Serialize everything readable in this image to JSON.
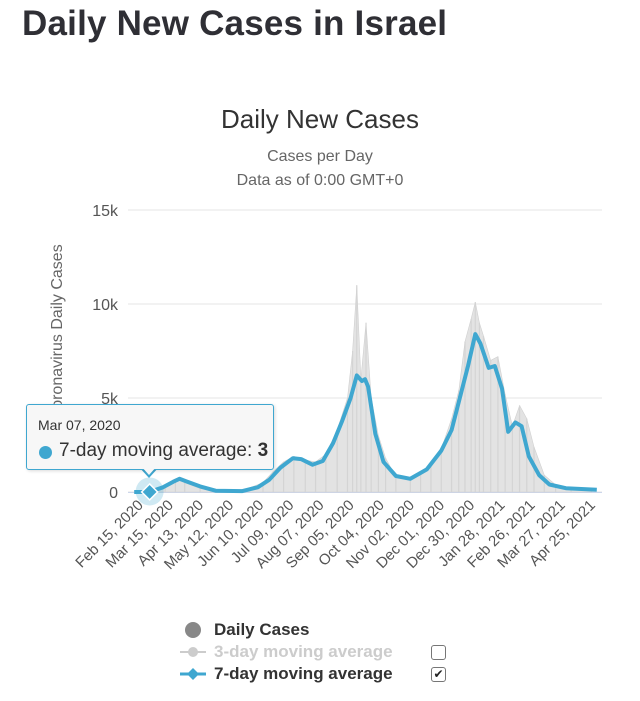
{
  "page": {
    "title": "Daily New Cases in Israel"
  },
  "chart_data": {
    "type": "line",
    "title": "Daily New Cases",
    "subtitle": "Cases per Day",
    "subtitle2": "Data as of 0:00 GMT+0",
    "ylabel": "Novel Coronavirus Daily Cases",
    "xlabel": "",
    "ylim": [
      0,
      15000
    ],
    "yticks": [
      {
        "value": 0,
        "label": "0"
      },
      {
        "value": 5000,
        "label": "5k"
      },
      {
        "value": 10000,
        "label": "10k"
      },
      {
        "value": 15000,
        "label": "15k"
      }
    ],
    "xlim": [
      "2020-02-15",
      "2021-05-20"
    ],
    "xticks": [
      "Feb 15, 2020",
      "Mar 15, 2020",
      "Apr 13, 2020",
      "May 12, 2020",
      "Jun 10, 2020",
      "Jul 09, 2020",
      "Aug 07, 2020",
      "Sep 05, 2020",
      "Oct 04, 2020",
      "Nov 02, 2020",
      "Dec 01, 2020",
      "Dec 30, 2020",
      "Jan 28, 2021",
      "Feb 26, 2021",
      "Mar 27, 2021",
      "Apr 25, 2021"
    ],
    "grid": true,
    "series": [
      {
        "name": "Daily Cases",
        "kind": "column",
        "color": "#dddddd",
        "points": [
          [
            "2020-02-21",
            0
          ],
          [
            "2020-03-10",
            50
          ],
          [
            "2020-03-22",
            400
          ],
          [
            "2020-04-01",
            700
          ],
          [
            "2020-04-10",
            500
          ],
          [
            "2020-04-25",
            180
          ],
          [
            "2020-05-10",
            30
          ],
          [
            "2020-05-25",
            30
          ],
          [
            "2020-06-10",
            180
          ],
          [
            "2020-06-25",
            500
          ],
          [
            "2020-07-05",
            1100
          ],
          [
            "2020-07-15",
            1600
          ],
          [
            "2020-07-25",
            1900
          ],
          [
            "2020-08-05",
            1700
          ],
          [
            "2020-08-15",
            1600
          ],
          [
            "2020-08-25",
            2000
          ],
          [
            "2020-09-05",
            3300
          ],
          [
            "2020-09-15",
            5000
          ],
          [
            "2020-09-20",
            7500
          ],
          [
            "2020-09-24",
            11000
          ],
          [
            "2020-09-28",
            6000
          ],
          [
            "2020-10-03",
            9000
          ],
          [
            "2020-10-08",
            5000
          ],
          [
            "2020-10-15",
            3000
          ],
          [
            "2020-10-22",
            1800
          ],
          [
            "2020-11-01",
            800
          ],
          [
            "2020-11-15",
            700
          ],
          [
            "2020-11-25",
            900
          ],
          [
            "2020-12-05",
            1500
          ],
          [
            "2020-12-15",
            2300
          ],
          [
            "2020-12-25",
            3900
          ],
          [
            "2021-01-01",
            5400
          ],
          [
            "2021-01-07",
            8000
          ],
          [
            "2021-01-13",
            9200
          ],
          [
            "2021-01-17",
            10100
          ],
          [
            "2021-01-21",
            9000
          ],
          [
            "2021-01-25",
            8300
          ],
          [
            "2021-02-01",
            7000
          ],
          [
            "2021-02-08",
            7200
          ],
          [
            "2021-02-15",
            5200
          ],
          [
            "2021-02-22",
            3500
          ],
          [
            "2021-03-01",
            4600
          ],
          [
            "2021-03-08",
            3900
          ],
          [
            "2021-03-15",
            2400
          ],
          [
            "2021-03-25",
            900
          ],
          [
            "2021-04-05",
            380
          ],
          [
            "2021-04-20",
            170
          ],
          [
            "2021-05-10",
            50
          ]
        ]
      },
      {
        "name": "3-day moving average",
        "kind": "line",
        "color": "#cccccc",
        "visible": false
      },
      {
        "name": "7-day moving average",
        "kind": "line",
        "color": "#3fa7d0",
        "points": [
          [
            "2020-02-21",
            0
          ],
          [
            "2020-03-07",
            3
          ],
          [
            "2020-03-20",
            250
          ],
          [
            "2020-03-30",
            550
          ],
          [
            "2020-04-05",
            700
          ],
          [
            "2020-04-12",
            560
          ],
          [
            "2020-04-25",
            300
          ],
          [
            "2020-05-10",
            70
          ],
          [
            "2020-06-05",
            50
          ],
          [
            "2020-06-20",
            250
          ],
          [
            "2020-07-01",
            650
          ],
          [
            "2020-07-12",
            1300
          ],
          [
            "2020-07-24",
            1800
          ],
          [
            "2020-08-01",
            1750
          ],
          [
            "2020-08-12",
            1450
          ],
          [
            "2020-08-22",
            1650
          ],
          [
            "2020-09-01",
            2600
          ],
          [
            "2020-09-10",
            3800
          ],
          [
            "2020-09-18",
            5000
          ],
          [
            "2020-09-24",
            6200
          ],
          [
            "2020-09-29",
            5900
          ],
          [
            "2020-10-02",
            6000
          ],
          [
            "2020-10-05",
            5600
          ],
          [
            "2020-10-12",
            3100
          ],
          [
            "2020-10-20",
            1600
          ],
          [
            "2020-11-01",
            850
          ],
          [
            "2020-11-15",
            700
          ],
          [
            "2020-12-01",
            1200
          ],
          [
            "2020-12-15",
            2200
          ],
          [
            "2020-12-25",
            3300
          ],
          [
            "2021-01-02",
            5000
          ],
          [
            "2021-01-10",
            6700
          ],
          [
            "2021-01-17",
            8400
          ],
          [
            "2021-01-22",
            7900
          ],
          [
            "2021-01-30",
            6600
          ],
          [
            "2021-02-05",
            6700
          ],
          [
            "2021-02-12",
            5500
          ],
          [
            "2021-02-18",
            3200
          ],
          [
            "2021-02-25",
            3700
          ],
          [
            "2021-03-03",
            3500
          ],
          [
            "2021-03-10",
            1900
          ],
          [
            "2021-03-20",
            900
          ],
          [
            "2021-03-30",
            400
          ],
          [
            "2021-04-15",
            200
          ],
          [
            "2021-05-15",
            120
          ]
        ]
      }
    ],
    "legend": {
      "placement": "bottom",
      "items": [
        {
          "name": "Daily Cases",
          "checkbox": false
        },
        {
          "name": "3-day moving average",
          "checkbox": true,
          "checked": false
        },
        {
          "name": "7-day moving average",
          "checkbox": true,
          "checked": true
        }
      ]
    },
    "tooltip": {
      "date": "Mar 07, 2020",
      "series_label": "7-day moving average: ",
      "value": "3",
      "x": "2020-03-07",
      "y": 3
    }
  }
}
